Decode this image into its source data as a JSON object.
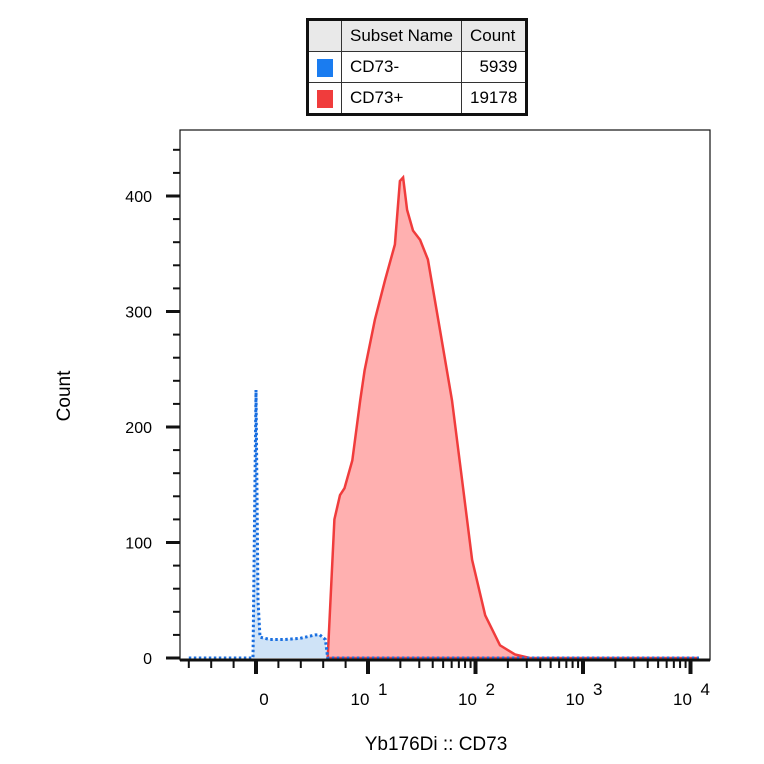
{
  "legend": {
    "headers": [
      "Subset Name",
      "Count"
    ],
    "rows": [
      {
        "name": "CD73-",
        "count": "5939",
        "color": "#1a7cf0"
      },
      {
        "name": "CD73+",
        "count": "19178",
        "color": "#f03c3c"
      }
    ]
  },
  "chart_data": {
    "type": "area",
    "xlabel": "Yb176Di :: CD73",
    "ylabel": "Count",
    "x_scale": "biexponential",
    "x_ticks": [
      {
        "value": 0,
        "base": "0",
        "exp": ""
      },
      {
        "value": 10,
        "base": "10",
        "exp": "1"
      },
      {
        "value": 100,
        "base": "10",
        "exp": "2"
      },
      {
        "value": 1000,
        "base": "10",
        "exp": "3"
      },
      {
        "value": 10000,
        "base": "10",
        "exp": "4"
      }
    ],
    "y_ticks": [
      0,
      100,
      200,
      300,
      400
    ],
    "ylim": [
      0,
      460
    ],
    "series": [
      {
        "name": "CD73+",
        "color": "#f03c3c",
        "fill": "#ffb0b0",
        "style": "solid",
        "x": [
          6.4,
          7.0,
          7.5,
          7.9,
          8.6,
          9.3,
          9.7,
          11.6,
          14.4,
          17.8,
          19.8,
          21.2,
          23.1,
          26.2,
          30.5,
          36.1,
          46.7,
          60.5,
          75,
          93,
          123,
          169,
          233,
          320,
          12000
        ],
        "y": [
          0,
          120,
          141,
          147,
          171,
          223,
          249,
          293,
          327,
          358,
          413,
          416,
          388,
          370,
          362,
          345,
          284,
          223,
          154,
          85,
          37,
          11,
          3,
          0,
          0
        ]
      },
      {
        "name": "CD73-",
        "color": "#1a6fe0",
        "fill": "#cfe3f7",
        "style": "dotted",
        "x": [
          -6,
          -0.27,
          0,
          0.18,
          0.36,
          1.25,
          2.6,
          3.9,
          5.3,
          5.7,
          6.2,
          6.4,
          12000
        ],
        "y": [
          0,
          0,
          232,
          50,
          18,
          16,
          16,
          17,
          20,
          20,
          16,
          0,
          0
        ]
      }
    ]
  }
}
